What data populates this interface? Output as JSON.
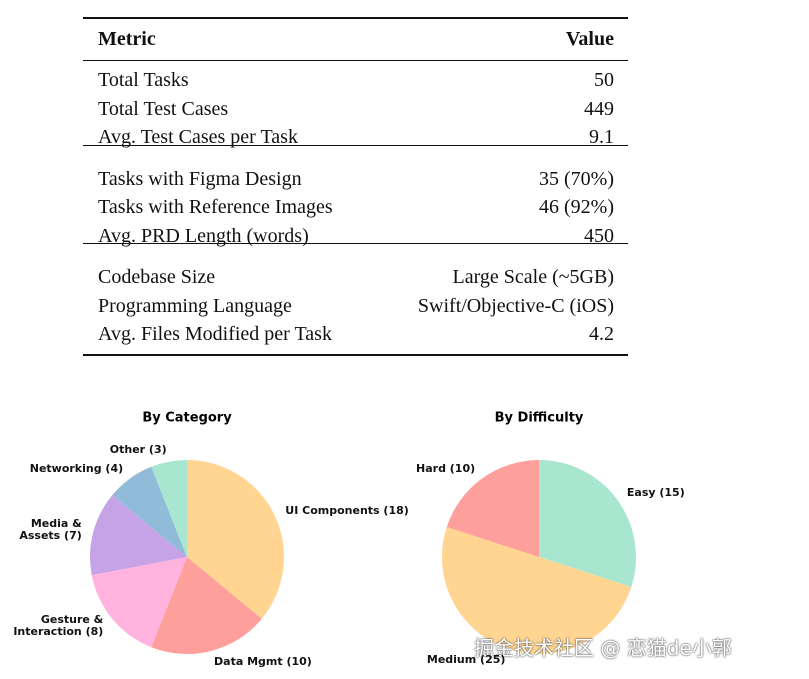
{
  "table": {
    "header": [
      "Metric",
      "Value"
    ],
    "groups": [
      [
        [
          "Total Tasks",
          "50"
        ],
        [
          "Total Test Cases",
          "449"
        ],
        [
          "Avg. Test Cases per Task",
          "9.1"
        ]
      ],
      [
        [
          "Tasks with Figma Design",
          "35 (70%)"
        ],
        [
          "Tasks with Reference Images",
          "46 (92%)"
        ],
        [
          "Avg. PRD Length (words)",
          "450"
        ]
      ],
      [
        [
          "Codebase Size",
          "Large Scale (~5GB)"
        ],
        [
          "Programming Language",
          "Swift/Objective-C (iOS)"
        ],
        [
          "Avg. Files Modified per Task",
          "4.2"
        ]
      ]
    ]
  },
  "chart_data": [
    {
      "type": "pie",
      "title": "By Category",
      "labels": [
        "UI Components (18)",
        "Data Mgmt (10)",
        "Gesture &\nInteraction (8)",
        "Media &\nAssets (7)",
        "Networking (4)",
        "Other (3)"
      ],
      "values": [
        18,
        10,
        8,
        7,
        4,
        3
      ],
      "colors": [
        "#ffd591",
        "#ff9f9b",
        "#ffb3de",
        "#c5a3e6",
        "#90bcd9",
        "#a8e6cf"
      ]
    },
    {
      "type": "pie",
      "title": "By Difficulty",
      "labels": [
        "Easy (15)",
        "Medium (25)",
        "Hard (10)"
      ],
      "values": [
        15,
        25,
        10
      ],
      "colors": [
        "#a8e6cf",
        "#ffd591",
        "#ff9f9b"
      ]
    }
  ],
  "watermark": "掘金技术社区 @ 恋猫de小郭"
}
